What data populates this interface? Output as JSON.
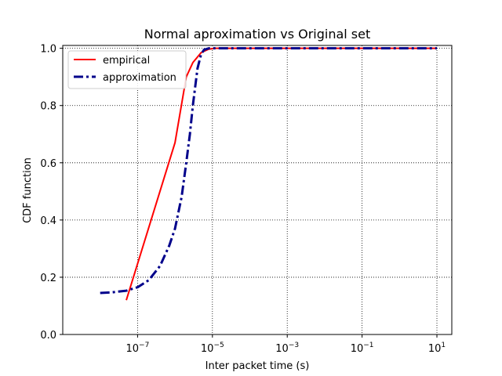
{
  "chart_data": {
    "type": "line",
    "title": "Normal aproximation vs Original set",
    "xlabel": "Inter packet time (s)",
    "ylabel": "CDF function",
    "xscale": "log",
    "xlim": [
      1e-09,
      25
    ],
    "ylim": [
      0,
      1.01
    ],
    "grid": true,
    "grid_style": "dotted",
    "legend_position": "top-left",
    "x_ticks": [
      {
        "value": 1e-07,
        "base": "10",
        "exp": "−7"
      },
      {
        "value": 1e-05,
        "base": "10",
        "exp": "−5"
      },
      {
        "value": 0.001,
        "base": "10",
        "exp": "−3"
      },
      {
        "value": 0.1,
        "base": "10",
        "exp": "−1"
      },
      {
        "value": 10,
        "base": "10",
        "exp": "1"
      }
    ],
    "y_ticks": [
      {
        "value": 0.0,
        "label": "0.0"
      },
      {
        "value": 0.2,
        "label": "0.2"
      },
      {
        "value": 0.4,
        "label": "0.4"
      },
      {
        "value": 0.6,
        "label": "0.6"
      },
      {
        "value": 0.8,
        "label": "0.8"
      },
      {
        "value": 1.0,
        "label": "1.0"
      }
    ],
    "series": [
      {
        "name": "empirical",
        "color": "#ff0000",
        "style": "solid",
        "points": [
          [
            5e-08,
            0.12
          ],
          [
            1e-06,
            0.67
          ],
          [
            2e-06,
            0.9
          ],
          [
            3e-06,
            0.95
          ],
          [
            5e-06,
            0.985
          ],
          [
            8e-06,
            0.997
          ],
          [
            1.2e-05,
            1.0
          ],
          [
            10,
            1.0
          ]
        ]
      },
      {
        "name": "approximation",
        "color": "#00008b",
        "style": "dashdot",
        "points": [
          [
            1e-08,
            0.145
          ],
          [
            2e-08,
            0.147
          ],
          [
            5e-08,
            0.153
          ],
          [
            1e-07,
            0.165
          ],
          [
            2e-07,
            0.19
          ],
          [
            4e-07,
            0.24
          ],
          [
            7e-07,
            0.31
          ],
          [
            1e-06,
            0.37
          ],
          [
            1.5e-06,
            0.48
          ],
          [
            2e-06,
            0.6
          ],
          [
            2.5e-06,
            0.7
          ],
          [
            3e-06,
            0.8
          ],
          [
            3.5e-06,
            0.87
          ],
          [
            4e-06,
            0.93
          ],
          [
            5e-06,
            0.98
          ],
          [
            6e-06,
            0.995
          ],
          [
            8e-06,
            1.0
          ],
          [
            10,
            1.0
          ]
        ]
      }
    ]
  }
}
